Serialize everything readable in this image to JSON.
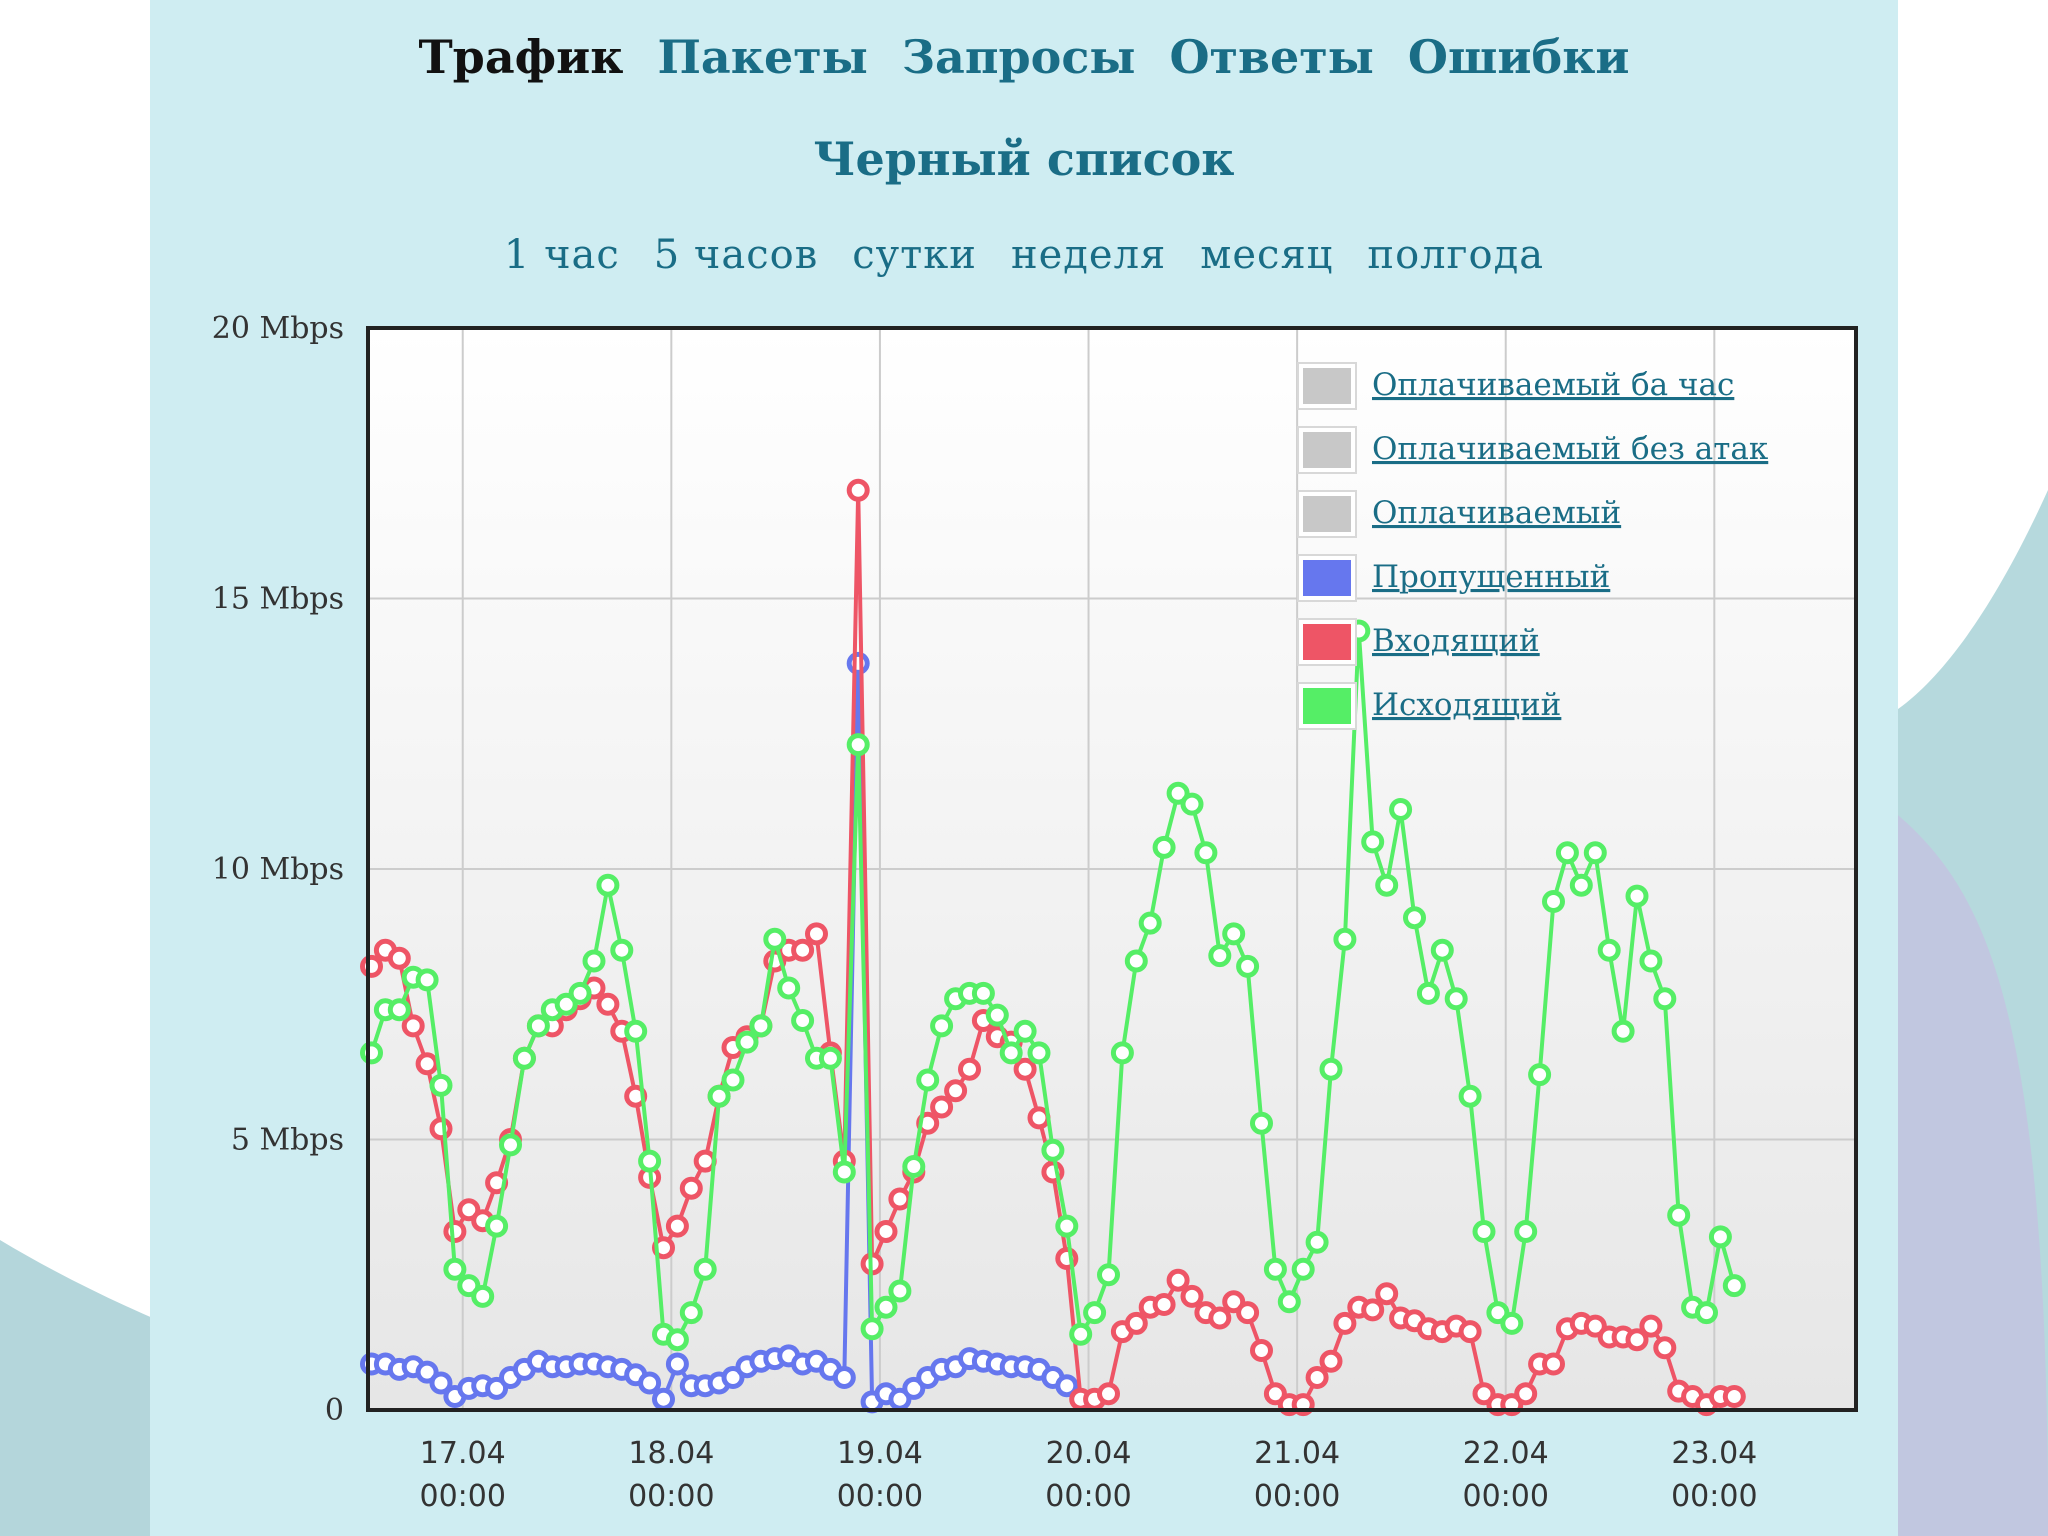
{
  "nav": {
    "tabs": [
      {
        "label": "Трафик",
        "active": true
      },
      {
        "label": "Пакеты",
        "active": false
      },
      {
        "label": "Запросы",
        "active": false
      },
      {
        "label": "Ответы",
        "active": false
      },
      {
        "label": "Ошибки",
        "active": false
      }
    ],
    "blacklist": "Черный список",
    "periods": [
      "1 час",
      "5 часов",
      "сутки",
      "неделя",
      "месяц",
      "полгода"
    ]
  },
  "colors": {
    "panel": "#cfedf2",
    "link": "#1a6d86",
    "passed": "#6677ee",
    "incoming": "#ee5566",
    "outgoing": "#55ee66",
    "billable": "#c8c8c8"
  },
  "chart_data": {
    "type": "line",
    "x_unit": "hours from 17.04 00:00",
    "ylim": [
      0,
      20
    ],
    "xlim": [
      -10.9,
      160.3
    ],
    "y_ticks": [
      {
        "value": 0,
        "label": "0"
      },
      {
        "value": 5,
        "label": "5 Mbps"
      },
      {
        "value": 10,
        "label": "10 Mbps"
      },
      {
        "value": 15,
        "label": "15 Mbps"
      },
      {
        "value": 20,
        "label": "20 Mbps"
      }
    ],
    "x_ticks": [
      {
        "value": 0,
        "date": "17.04",
        "time": "00:00"
      },
      {
        "value": 24,
        "date": "18.04",
        "time": "00:00"
      },
      {
        "value": 48,
        "date": "19.04",
        "time": "00:00"
      },
      {
        "value": 72,
        "date": "20.04",
        "time": "00:00"
      },
      {
        "value": 96,
        "date": "21.04",
        "time": "00:00"
      },
      {
        "value": 120,
        "date": "22.04",
        "time": "00:00"
      },
      {
        "value": 144,
        "date": "23.04",
        "time": "00:00"
      }
    ],
    "grid": true,
    "legend_position": "top-right",
    "legend": [
      {
        "name": "Оплачиваемый ба час",
        "color": "#c8c8c8"
      },
      {
        "name": "Оплачиваемый без атак",
        "color": "#c8c8c8"
      },
      {
        "name": "Оплачиваемый",
        "color": "#c8c8c8"
      },
      {
        "name": "Пропущенный",
        "color": "#6677ee"
      },
      {
        "name": "Входящий",
        "color": "#ee5566"
      },
      {
        "name": "Исходящий",
        "color": "#55ee66"
      }
    ],
    "series": [
      {
        "name": "Пропущенный",
        "color": "#6677ee",
        "points": [
          [
            -10.5,
            0.85
          ],
          [
            -8.9,
            0.85
          ],
          [
            -7.3,
            0.75
          ],
          [
            -5.7,
            0.8
          ],
          [
            -4.1,
            0.7
          ],
          [
            -2.5,
            0.5
          ],
          [
            -0.9,
            0.25
          ],
          [
            0.7,
            0.4
          ],
          [
            2.3,
            0.45
          ],
          [
            3.9,
            0.4
          ],
          [
            5.5,
            0.6
          ],
          [
            7.1,
            0.75
          ],
          [
            8.7,
            0.9
          ],
          [
            10.3,
            0.8
          ],
          [
            11.9,
            0.8
          ],
          [
            13.5,
            0.85
          ],
          [
            15.1,
            0.85
          ],
          [
            16.7,
            0.8
          ],
          [
            18.3,
            0.75
          ],
          [
            19.9,
            0.65
          ],
          [
            21.5,
            0.5
          ],
          [
            23.1,
            0.2
          ],
          [
            24.7,
            0.85
          ],
          [
            26.3,
            0.45
          ],
          [
            27.9,
            0.45
          ],
          [
            29.5,
            0.5
          ],
          [
            31.1,
            0.6
          ],
          [
            32.7,
            0.8
          ],
          [
            34.3,
            0.9
          ],
          [
            35.9,
            0.95
          ],
          [
            37.5,
            1.0
          ],
          [
            39.1,
            0.85
          ],
          [
            40.7,
            0.9
          ],
          [
            42.3,
            0.75
          ],
          [
            43.9,
            0.6
          ],
          [
            45.5,
            13.8
          ],
          [
            47.1,
            0.15
          ],
          [
            48.7,
            0.3
          ],
          [
            50.3,
            0.2
          ],
          [
            51.9,
            0.4
          ],
          [
            53.5,
            0.6
          ],
          [
            55.1,
            0.75
          ],
          [
            56.7,
            0.8
          ],
          [
            58.3,
            0.95
          ],
          [
            59.9,
            0.9
          ],
          [
            61.5,
            0.85
          ],
          [
            63.1,
            0.8
          ],
          [
            64.7,
            0.8
          ],
          [
            66.3,
            0.75
          ],
          [
            67.9,
            0.6
          ],
          [
            69.5,
            0.45
          ]
        ]
      },
      {
        "name": "Входящий",
        "color": "#ee5566",
        "points": [
          [
            -10.5,
            8.2
          ],
          [
            -8.9,
            8.5
          ],
          [
            -7.3,
            8.35
          ],
          [
            -5.7,
            7.1
          ],
          [
            -4.1,
            6.4
          ],
          [
            -2.5,
            5.2
          ],
          [
            -0.9,
            3.3
          ],
          [
            0.7,
            3.7
          ],
          [
            2.3,
            3.5
          ],
          [
            3.9,
            4.2
          ],
          [
            5.5,
            5.0
          ],
          [
            7.1,
            6.5
          ],
          [
            8.7,
            7.1
          ],
          [
            10.3,
            7.1
          ],
          [
            11.9,
            7.4
          ],
          [
            13.5,
            7.6
          ],
          [
            15.1,
            7.8
          ],
          [
            16.7,
            7.5
          ],
          [
            18.3,
            7.0
          ],
          [
            19.9,
            5.8
          ],
          [
            21.5,
            4.3
          ],
          [
            23.1,
            3.0
          ],
          [
            24.7,
            3.4
          ],
          [
            26.3,
            4.1
          ],
          [
            27.9,
            4.6
          ],
          [
            29.5,
            5.8
          ],
          [
            31.1,
            6.7
          ],
          [
            32.7,
            6.9
          ],
          [
            34.3,
            7.1
          ],
          [
            35.9,
            8.3
          ],
          [
            37.5,
            8.5
          ],
          [
            39.1,
            8.5
          ],
          [
            40.7,
            8.8
          ],
          [
            42.3,
            6.6
          ],
          [
            43.9,
            4.6
          ],
          [
            45.5,
            17.0
          ],
          [
            47.1,
            2.7
          ],
          [
            48.7,
            3.3
          ],
          [
            50.3,
            3.9
          ],
          [
            51.9,
            4.4
          ],
          [
            53.5,
            5.3
          ],
          [
            55.1,
            5.6
          ],
          [
            56.7,
            5.9
          ],
          [
            58.3,
            6.3
          ],
          [
            59.9,
            7.2
          ],
          [
            61.5,
            6.9
          ],
          [
            63.1,
            6.8
          ],
          [
            64.7,
            6.3
          ],
          [
            66.3,
            5.4
          ],
          [
            67.9,
            4.4
          ],
          [
            69.5,
            2.8
          ],
          [
            71.1,
            0.2
          ],
          [
            72.7,
            0.2
          ],
          [
            74.3,
            0.3
          ],
          [
            75.9,
            1.45
          ],
          [
            77.5,
            1.6
          ],
          [
            79.1,
            1.9
          ],
          [
            80.7,
            1.95
          ],
          [
            82.3,
            2.4
          ],
          [
            83.9,
            2.1
          ],
          [
            85.5,
            1.8
          ],
          [
            87.1,
            1.7
          ],
          [
            88.7,
            2.0
          ],
          [
            90.3,
            1.8
          ],
          [
            91.9,
            1.1
          ],
          [
            93.5,
            0.3
          ],
          [
            95.1,
            0.1
          ],
          [
            96.7,
            0.1
          ],
          [
            98.3,
            0.6
          ],
          [
            99.9,
            0.9
          ],
          [
            101.5,
            1.6
          ],
          [
            103.1,
            1.9
          ],
          [
            104.7,
            1.85
          ],
          [
            106.3,
            2.15
          ],
          [
            107.9,
            1.7
          ],
          [
            109.5,
            1.65
          ],
          [
            111.1,
            1.5
          ],
          [
            112.7,
            1.45
          ],
          [
            114.3,
            1.55
          ],
          [
            115.9,
            1.45
          ],
          [
            117.5,
            0.3
          ],
          [
            119.1,
            0.1
          ],
          [
            120.7,
            0.1
          ],
          [
            122.3,
            0.3
          ],
          [
            123.9,
            0.85
          ],
          [
            125.5,
            0.85
          ],
          [
            127.1,
            1.5
          ],
          [
            128.7,
            1.6
          ],
          [
            130.3,
            1.55
          ],
          [
            131.9,
            1.35
          ],
          [
            133.5,
            1.35
          ],
          [
            135.1,
            1.3
          ],
          [
            136.7,
            1.55
          ],
          [
            138.3,
            1.15
          ],
          [
            139.9,
            0.35
          ],
          [
            141.5,
            0.25
          ],
          [
            143.1,
            0.1
          ],
          [
            144.7,
            0.25
          ],
          [
            146.3,
            0.25
          ]
        ]
      },
      {
        "name": "Исходящий",
        "color": "#55ee66",
        "points": [
          [
            -10.5,
            6.6
          ],
          [
            -8.9,
            7.4
          ],
          [
            -7.3,
            7.4
          ],
          [
            -5.7,
            8.0
          ],
          [
            -4.1,
            7.95
          ],
          [
            -2.5,
            6.0
          ],
          [
            -0.9,
            2.6
          ],
          [
            0.7,
            2.3
          ],
          [
            2.3,
            2.1
          ],
          [
            3.9,
            3.4
          ],
          [
            5.5,
            4.9
          ],
          [
            7.1,
            6.5
          ],
          [
            8.7,
            7.1
          ],
          [
            10.3,
            7.4
          ],
          [
            11.9,
            7.5
          ],
          [
            13.5,
            7.7
          ],
          [
            15.1,
            8.3
          ],
          [
            16.7,
            9.7
          ],
          [
            18.3,
            8.5
          ],
          [
            19.9,
            7.0
          ],
          [
            21.5,
            4.6
          ],
          [
            23.1,
            1.4
          ],
          [
            24.7,
            1.3
          ],
          [
            26.3,
            1.8
          ],
          [
            27.9,
            2.6
          ],
          [
            29.5,
            5.8
          ],
          [
            31.1,
            6.1
          ],
          [
            32.7,
            6.8
          ],
          [
            34.3,
            7.1
          ],
          [
            35.9,
            8.7
          ],
          [
            37.5,
            7.8
          ],
          [
            39.1,
            7.2
          ],
          [
            40.7,
            6.5
          ],
          [
            42.3,
            6.5
          ],
          [
            43.9,
            4.4
          ],
          [
            45.5,
            12.3
          ],
          [
            47.1,
            1.5
          ],
          [
            48.7,
            1.9
          ],
          [
            50.3,
            2.2
          ],
          [
            51.9,
            4.5
          ],
          [
            53.5,
            6.1
          ],
          [
            55.1,
            7.1
          ],
          [
            56.7,
            7.6
          ],
          [
            58.3,
            7.7
          ],
          [
            59.9,
            7.7
          ],
          [
            61.5,
            7.3
          ],
          [
            63.1,
            6.6
          ],
          [
            64.7,
            7.0
          ],
          [
            66.3,
            6.6
          ],
          [
            67.9,
            4.8
          ],
          [
            69.5,
            3.4
          ],
          [
            71.1,
            1.4
          ],
          [
            72.7,
            1.8
          ],
          [
            74.3,
            2.5
          ],
          [
            75.9,
            6.6
          ],
          [
            77.5,
            8.3
          ],
          [
            79.1,
            9.0
          ],
          [
            80.7,
            10.4
          ],
          [
            82.3,
            11.4
          ],
          [
            83.9,
            11.2
          ],
          [
            85.5,
            10.3
          ],
          [
            87.1,
            8.4
          ],
          [
            88.7,
            8.8
          ],
          [
            90.3,
            8.2
          ],
          [
            91.9,
            5.3
          ],
          [
            93.5,
            2.6
          ],
          [
            95.1,
            2.0
          ],
          [
            96.7,
            2.6
          ],
          [
            98.3,
            3.1
          ],
          [
            99.9,
            6.3
          ],
          [
            101.5,
            8.7
          ],
          [
            103.1,
            14.4
          ],
          [
            104.7,
            10.5
          ],
          [
            106.3,
            9.7
          ],
          [
            107.9,
            11.1
          ],
          [
            109.5,
            9.1
          ],
          [
            111.1,
            7.7
          ],
          [
            112.7,
            8.5
          ],
          [
            114.3,
            7.6
          ],
          [
            115.9,
            5.8
          ],
          [
            117.5,
            3.3
          ],
          [
            119.1,
            1.8
          ],
          [
            120.7,
            1.6
          ],
          [
            122.3,
            3.3
          ],
          [
            123.9,
            6.2
          ],
          [
            125.5,
            9.4
          ],
          [
            127.1,
            10.3
          ],
          [
            128.7,
            9.7
          ],
          [
            130.3,
            10.3
          ],
          [
            131.9,
            8.5
          ],
          [
            133.5,
            7.0
          ],
          [
            135.1,
            9.5
          ],
          [
            136.7,
            8.3
          ],
          [
            138.3,
            7.6
          ],
          [
            139.9,
            3.6
          ],
          [
            141.5,
            1.9
          ],
          [
            143.1,
            1.8
          ],
          [
            144.7,
            3.2
          ],
          [
            146.3,
            2.3
          ]
        ]
      }
    ]
  }
}
